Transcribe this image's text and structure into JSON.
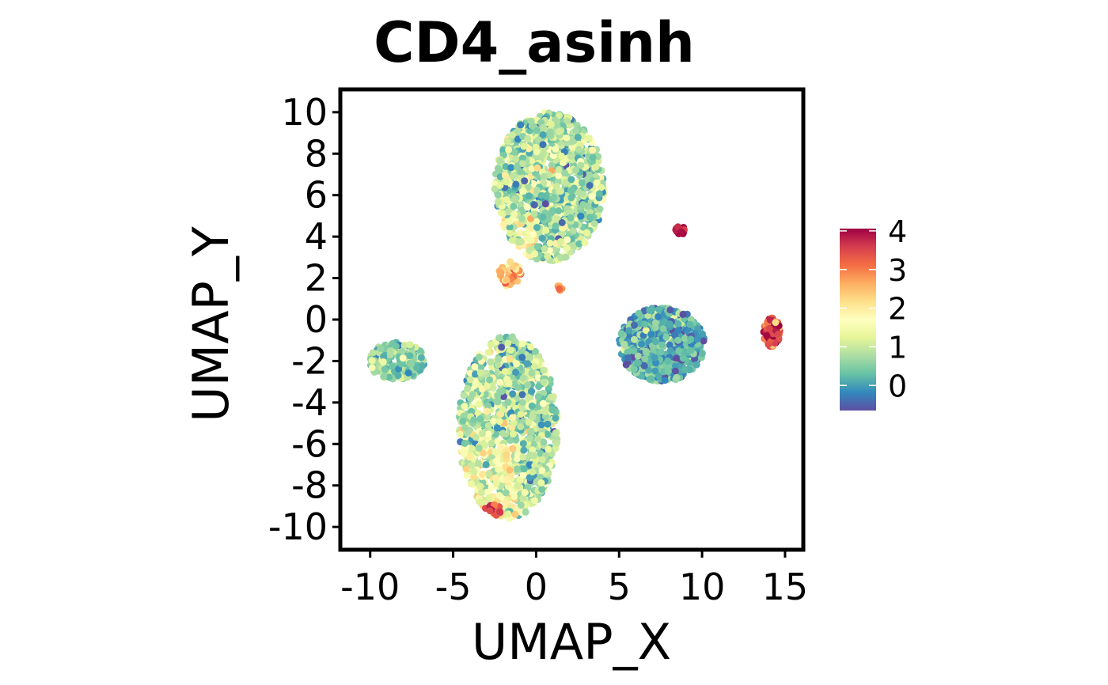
{
  "chart_data": {
    "type": "scatter",
    "title": "CD4_asinh",
    "xlabel": "UMAP_X",
    "ylabel": "UMAP_Y",
    "xlim": [
      -11.8,
      16.1
    ],
    "ylim": [
      -11.1,
      11.1
    ],
    "xticks": [
      -10,
      -5,
      0,
      5,
      10,
      15
    ],
    "xtick_labels": [
      "-10",
      "-5",
      "0",
      "5",
      "10",
      "15"
    ],
    "yticks": [
      10,
      8,
      6,
      4,
      2,
      0,
      -2,
      -4,
      -6,
      -8,
      -10
    ],
    "ytick_labels": [
      "10",
      "8",
      "6",
      "4",
      "2",
      "0",
      "-2",
      "-4",
      "-6",
      "-8",
      "-10"
    ],
    "grid": false,
    "legend": {
      "placement": "right",
      "type": "colorbar",
      "palette": [
        "#5e4fa2",
        "#3288bd",
        "#66c2a5",
        "#abdda4",
        "#e6f598",
        "#ffffbf",
        "#fee08b",
        "#fdae61",
        "#f46d43",
        "#d53e4f",
        "#9e0142"
      ],
      "range": [
        -0.65,
        4.06
      ],
      "ticks": [
        4,
        3,
        2,
        1,
        0
      ],
      "tick_labels": [
        "4",
        "3",
        "2",
        "1",
        "0"
      ]
    },
    "clusters": [
      {
        "name": "top-cluster",
        "cx": 0.8,
        "cy": 6.4,
        "rx": 3.3,
        "ry": 3.6,
        "n": 1300,
        "mean": 0.8,
        "sd": 0.55
      },
      {
        "name": "bottom-cluster",
        "cx": -1.7,
        "cy": -5.2,
        "rx": 3.0,
        "ry": 4.4,
        "n": 1200,
        "mean": 0.85,
        "sd": 0.55
      },
      {
        "name": "left-cluster",
        "cx": -8.4,
        "cy": -2.0,
        "rx": 1.7,
        "ry": 0.9,
        "n": 250,
        "mean": 0.6,
        "sd": 0.45
      },
      {
        "name": "right-middle-cluster",
        "cx": 7.6,
        "cy": -1.2,
        "rx": 2.6,
        "ry": 1.8,
        "n": 650,
        "mean": 0.15,
        "sd": 0.4
      },
      {
        "name": "small-red-cluster",
        "cx": 8.7,
        "cy": 4.3,
        "rx": 0.3,
        "ry": 0.2,
        "n": 25,
        "mean": 3.9,
        "sd": 0.15
      },
      {
        "name": "far-right-cluster",
        "cx": 14.2,
        "cy": -0.6,
        "rx": 0.5,
        "ry": 0.7,
        "n": 120,
        "mean": 3.4,
        "sd": 0.45
      },
      {
        "name": "tiny-cluster",
        "cx": 1.4,
        "cy": 1.5,
        "rx": 0.2,
        "ry": 0.15,
        "n": 10,
        "mean": 2.9,
        "sd": 0.3
      },
      {
        "name": "bridge-cluster",
        "cx": -1.6,
        "cy": 2.2,
        "rx": 0.7,
        "ry": 0.6,
        "n": 40,
        "mean": 2.4,
        "sd": 0.5
      },
      {
        "name": "bottom-tip-cluster",
        "cx": -2.6,
        "cy": -9.2,
        "rx": 0.5,
        "ry": 0.3,
        "n": 20,
        "mean": 3.6,
        "sd": 0.4
      }
    ]
  }
}
